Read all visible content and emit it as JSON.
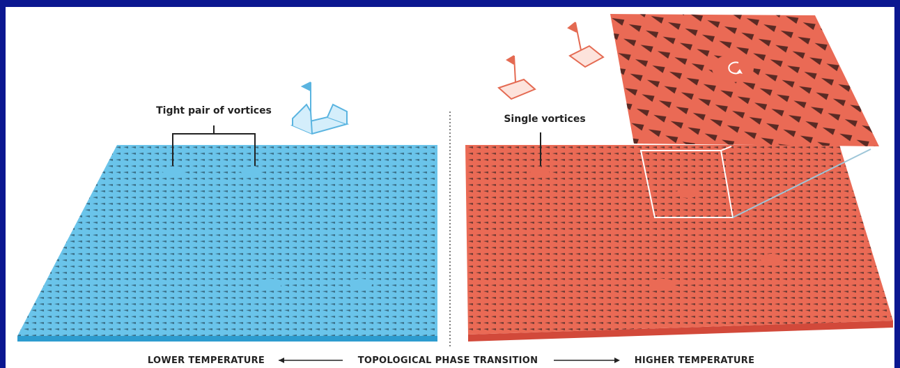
{
  "labels": {
    "left": "Tight pair of vortices",
    "right": "Single vortices"
  },
  "caption": {
    "low": "LOWER TEMPERATURE",
    "middle": "TOPOLOGICAL PHASE TRANSITION",
    "high": "HIGHER TEMPERATURE"
  }
}
